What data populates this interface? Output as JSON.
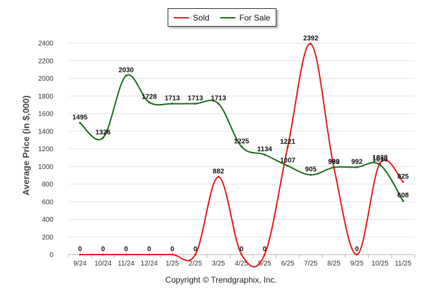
{
  "chart_data": {
    "type": "line",
    "ylabel": "Average Price (in $,000)",
    "xlabel": "",
    "ylim": [
      0,
      2400
    ],
    "yticks": [
      0,
      200,
      400,
      600,
      800,
      1000,
      1200,
      1400,
      1600,
      1800,
      2000,
      2200,
      2400
    ],
    "categories": [
      "9/24",
      "10/24",
      "11/24",
      "12/24",
      "1/25",
      "2/25",
      "3/25",
      "4/25",
      "5/25",
      "6/25",
      "7/25",
      "8/25",
      "9/25",
      "10/25",
      "11/25"
    ],
    "grid": true,
    "legend_position": "top-center",
    "series": [
      {
        "name": "Sold",
        "color": "#e41a1c",
        "values": [
          0,
          0,
          0,
          0,
          0,
          0,
          882,
          0,
          0,
          1221,
          2392,
          992,
          0,
          1038,
          825
        ],
        "labels": [
          "0",
          "0",
          "0",
          "0",
          "0",
          "0",
          "882",
          "0",
          "0",
          "1221",
          "2392",
          "992",
          "0",
          "1038",
          "825"
        ]
      },
      {
        "name": "For Sale",
        "color": "#1a6b1a",
        "values": [
          1495,
          1326,
          2030,
          1728,
          1713,
          1713,
          1713,
          1225,
          1134,
          1007,
          905,
          989,
          992,
          1019,
          608
        ],
        "labels": [
          "1495",
          "1326",
          "2030",
          "1728",
          "1713",
          "1713",
          "1713",
          "1225",
          "1134",
          "1007",
          "905",
          "989",
          "992",
          "1019",
          "608"
        ]
      }
    ]
  },
  "legend": {
    "sold": "Sold",
    "for_sale": "For Sale"
  },
  "footer": "Copyright © Trendgraphix, Inc."
}
